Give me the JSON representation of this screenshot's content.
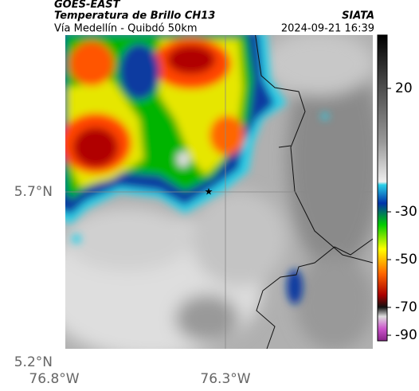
{
  "header": {
    "satellite": "GOES-EAST",
    "product": "Temperatura de Brillo CH13",
    "source": "SIATA",
    "route": "Vía Medellín - Quibdó 50km",
    "timestamp": "2024-09-21 16:39"
  },
  "map": {
    "lat_labels": [
      "5.7°N",
      "5.2°N"
    ],
    "lon_labels": [
      "76.8°W",
      "76.3°W"
    ]
  },
  "colorbar": {
    "ticks": [
      20,
      -30,
      -50,
      -70,
      -90
    ]
  }
}
